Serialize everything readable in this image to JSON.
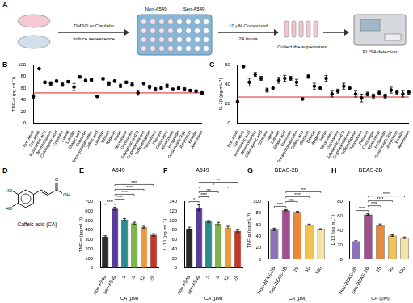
{
  "diagram": {
    "panel_label": "A",
    "non": "Non-A549",
    "sen": "Sen-A549",
    "treatment": "DMSO or Cisplatin",
    "induce": "Induce senescence",
    "compound": "10 μM Compound",
    "time": "24 hours",
    "collect": "Collect the supernatant",
    "elisa": "ELISA detection"
  },
  "structure": {
    "panel_label": "D",
    "name": "Caffeic acid (CA)",
    "ho_top": "HO",
    "ho_bottom": "HO",
    "oh": "OH",
    "o": "O"
  },
  "chart_data": [
    {
      "panel_label": "B",
      "type": "scatter",
      "marker": "circle",
      "color": "#000000",
      "categories": [
        "Non-A549",
        "Sen-A549",
        "Rosmarinic acid",
        "Amentoflavone",
        "Chlorogenic acid",
        "Coptisine",
        "Lupeol",
        "Luteolin",
        "Ellagic acid",
        "Quercetin",
        "Tetrahydropalmatine",
        "Caffeic acid",
        "Glycitein",
        "Dioscin",
        "Apigenin",
        "Icariin",
        "Sinomenine",
        "Oxymatrine",
        "Salvianolic acid B",
        "Cryptotanshinone",
        "Isoliquiritigenin",
        "Paeoniflorin",
        "Puerarin",
        "Cordycepin",
        "Asiaticoside",
        "Hesperidin",
        "Ginsenoside Rg1",
        "Glycyrrhizin",
        "Emodin",
        "Artemisinin"
      ],
      "values": [
        46,
        93,
        70,
        68,
        72,
        66,
        71,
        62,
        79,
        73,
        74,
        46,
        76,
        68,
        72,
        64,
        70,
        66,
        52,
        68,
        62,
        58,
        60,
        64,
        58,
        60,
        58,
        56,
        55,
        52
      ],
      "errors": [
        3,
        1,
        2,
        3,
        2,
        3,
        2,
        6,
        2,
        2,
        2,
        1,
        2,
        3,
        2,
        3,
        2,
        3,
        4,
        2,
        3,
        3,
        2,
        3,
        2,
        2,
        3,
        2,
        2,
        2
      ],
      "reference_line": 52,
      "ylabel": "TNF-α (pg mL⁻¹)",
      "ylim": [
        0,
        100
      ],
      "yticks": [
        0,
        20,
        40,
        60,
        80,
        100
      ],
      "grid": false
    },
    {
      "panel_label": "C",
      "type": "scatter",
      "marker": "circle",
      "color": "#000000",
      "categories": [
        "Non-A549",
        "Sen-A549",
        "Rosmarinic acid",
        "Amentoflavone",
        "Chlorogenic acid",
        "Coptisine",
        "Lupeol",
        "Luteolin",
        "Ellagic acid",
        "Quercetin",
        "Tetrahydropalmatine",
        "Caffeic acid",
        "Glycitein",
        "Dioscin",
        "Apigenin",
        "Icariin",
        "Sinomenine",
        "Oxymatrine",
        "Salvianolic acid B",
        "Cryptotanshinone",
        "Isoliquiritigenin",
        "Paeoniflorin",
        "Puerarin",
        "Cordycepin",
        "Asiaticoside",
        "Hesperidin",
        "Ginsenoside Rg1",
        "Glycyrrhizin",
        "Emodin",
        "Artemisinin"
      ],
      "values": [
        22,
        58,
        42,
        50,
        46,
        34,
        36,
        44,
        46,
        46,
        42,
        25,
        48,
        38,
        36,
        46,
        30,
        33,
        38,
        36,
        30,
        26,
        30,
        28,
        31,
        28,
        34,
        32,
        30,
        32
      ],
      "errors": [
        1,
        1,
        4,
        2,
        2,
        2,
        2,
        3,
        3,
        2,
        3,
        1,
        2,
        3,
        2,
        3,
        3,
        2,
        3,
        2,
        3,
        4,
        2,
        2,
        2,
        2,
        3,
        2,
        3,
        2
      ],
      "reference_line": 27,
      "ylabel": "IL-1β (pg mL⁻¹)",
      "ylim": [
        0,
        60
      ],
      "yticks": [
        0,
        20,
        40,
        60
      ],
      "grid": false
    },
    {
      "panel_label": "E",
      "type": "bar",
      "title": "A549",
      "categories": [
        "non-A549",
        "sen-A549",
        "3",
        "6",
        "12",
        "25"
      ],
      "values": [
        330,
        625,
        510,
        470,
        430,
        350
      ],
      "errors": [
        10,
        15,
        10,
        12,
        10,
        12
      ],
      "colors": [
        "#2b2b2b",
        "#5a3d9a",
        "#2a8c8c",
        "#7fb34d",
        "#e89a3c",
        "#c0392b"
      ],
      "xlabel": "CA (μM)",
      "ylabel": "TNF-α (pg mL⁻¹)",
      "ylim": [
        0,
        700
      ],
      "yticks": [
        0,
        100,
        200,
        300,
        400,
        500,
        600,
        700
      ],
      "grid": false,
      "significance": [
        {
          "compare": [
            "non-A549",
            "sen-A549"
          ],
          "label": "****"
        },
        {
          "compare": [
            "sen-A549",
            "3"
          ],
          "label": "****"
        },
        {
          "compare": [
            "sen-A549",
            "6"
          ],
          "label": "****"
        },
        {
          "compare": [
            "sen-A549",
            "12"
          ],
          "label": "****"
        },
        {
          "compare": [
            "sen-A549",
            "25"
          ],
          "label": "****"
        }
      ]
    },
    {
      "panel_label": "F",
      "type": "bar",
      "title": "A549",
      "categories": [
        "non-A549",
        "sen-A549",
        "3",
        "6",
        "12",
        "25"
      ],
      "values": [
        83,
        127,
        98,
        93,
        85,
        78
      ],
      "errors": [
        3,
        6,
        2,
        3,
        3,
        2
      ],
      "colors": [
        "#2b2b2b",
        "#5a3d9a",
        "#2a8c8c",
        "#7fb34d",
        "#e89a3c",
        "#c0392b"
      ],
      "xlabel": "CA (μM)",
      "ylabel": "IL-1β (pg mL⁻¹)",
      "ylim": [
        0,
        140
      ],
      "yticks": [
        0,
        20,
        40,
        60,
        80,
        100,
        120,
        140
      ],
      "grid": false,
      "significance": [
        {
          "compare": [
            "non-A549",
            "sen-A549"
          ],
          "label": "*"
        },
        {
          "compare": [
            "sen-A549",
            "3"
          ],
          "label": "****"
        },
        {
          "compare": [
            "sen-A549",
            "6"
          ],
          "label": "ns"
        },
        {
          "compare": [
            "sen-A549",
            "12"
          ],
          "label": "*"
        },
        {
          "compare": [
            "sen-A549",
            "25"
          ],
          "label": "**"
        }
      ]
    },
    {
      "panel_label": "G",
      "type": "bar",
      "title": "BEAS-2B",
      "categories": [
        "Non-BEAS-2B",
        "Sen-BEAS-2B",
        "25",
        "50",
        "100"
      ],
      "values": [
        52,
        85,
        82,
        60,
        52
      ],
      "errors": [
        2,
        1,
        1,
        1,
        1
      ],
      "colors": [
        "#8a74b8",
        "#a04f8f",
        "#e8883a",
        "#f2c14e",
        "#f3e2a6"
      ],
      "xlabel": "CA (μM)",
      "ylabel": "TNF-α (pg mL⁻¹)",
      "ylim": [
        0,
        100
      ],
      "yticks": [
        0,
        20,
        40,
        60,
        80,
        100
      ],
      "grid": false,
      "significance": [
        {
          "compare": [
            "Non-BEAS-2B",
            "Sen-BEAS-2B"
          ],
          "label": "****"
        },
        {
          "compare": [
            "Sen-BEAS-2B",
            "25"
          ],
          "label": "ns"
        },
        {
          "compare": [
            "Sen-BEAS-2B",
            "50"
          ],
          "label": "****"
        },
        {
          "compare": [
            "Sen-BEAS-2B",
            "100"
          ],
          "label": "****"
        }
      ]
    },
    {
      "panel_label": "H",
      "type": "bar",
      "title": "BEAS-2B",
      "categories": [
        "Non-BEAS-2B",
        "Sen-BEAS-2B",
        "25",
        "50",
        "100"
      ],
      "values": [
        25,
        62,
        48,
        33,
        30
      ],
      "errors": [
        1,
        1,
        1,
        1,
        1
      ],
      "colors": [
        "#8a74b8",
        "#a04f8f",
        "#e8883a",
        "#f2c14e",
        "#f3e2a6"
      ],
      "xlabel": "CA (μM)",
      "ylabel": "IL-1β (pg mL⁻¹)",
      "ylim": [
        0,
        80
      ],
      "yticks": [
        0,
        20,
        40,
        60,
        80
      ],
      "grid": false,
      "significance": [
        {
          "compare": [
            "Non-BEAS-2B",
            "Sen-BEAS-2B"
          ],
          "label": "****"
        },
        {
          "compare": [
            "Sen-BEAS-2B",
            "25"
          ],
          "label": "****"
        },
        {
          "compare": [
            "Sen-BEAS-2B",
            "50"
          ],
          "label": "****"
        },
        {
          "compare": [
            "Sen-BEAS-2B",
            "100"
          ],
          "label": "****"
        }
      ]
    }
  ]
}
